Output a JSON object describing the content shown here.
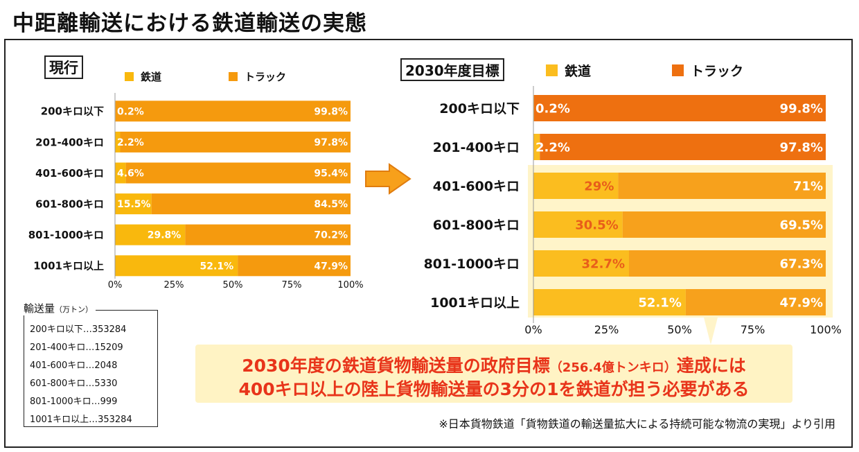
{
  "title": "中距離輸送における鉄道輸送の実態",
  "legend": {
    "rail": "鉄道",
    "truck": "トラック"
  },
  "colors": {
    "rail_current": "#f9b80d",
    "truck_current": "#f59a0e",
    "rail_target": "#fbbd1f",
    "truck_target_dark": "#ee7010",
    "truck_target_light": "#f7a11c",
    "highlight_bg": "#fff4c9",
    "label_dark": "#e85d1a",
    "callout_text": "#e8341a"
  },
  "chart_data": [
    {
      "type": "bar",
      "orientation": "horizontal",
      "stacked": true,
      "tag": "現行",
      "categories": [
        "200キロ以下",
        "201-400キロ",
        "401-600キロ",
        "601-800キロ",
        "801-1000キロ",
        "1001キロ以上"
      ],
      "series": [
        {
          "name": "鉄道",
          "values": [
            0.2,
            2.2,
            4.6,
            15.5,
            29.8,
            52.1
          ],
          "labels": [
            "0.2%",
            "2.2%",
            "4.6%",
            "15.5%",
            "29.8%",
            "52.1%"
          ]
        },
        {
          "name": "トラック",
          "values": [
            99.8,
            97.8,
            95.4,
            84.5,
            70.2,
            47.9
          ],
          "labels": [
            "99.8%",
            "97.8%",
            "95.4%",
            "84.5%",
            "70.2%",
            "47.9%"
          ]
        }
      ],
      "xlim": [
        0,
        100
      ],
      "xticks": [
        "0%",
        "25%",
        "50%",
        "75%",
        "100%"
      ],
      "legend_position": "top"
    },
    {
      "type": "bar",
      "orientation": "horizontal",
      "stacked": true,
      "tag": "2030年度目標",
      "categories": [
        "200キロ以下",
        "201-400キロ",
        "401-600キロ",
        "601-800キロ",
        "801-1000キロ",
        "1001キロ以上"
      ],
      "series": [
        {
          "name": "鉄道",
          "values": [
            0.2,
            2.2,
            29,
            30.5,
            32.7,
            52.1
          ],
          "labels": [
            "0.2%",
            "2.2%",
            "29%",
            "30.5%",
            "32.7%",
            "52.1%"
          ]
        },
        {
          "name": "トラック",
          "values": [
            99.8,
            97.8,
            71,
            69.5,
            67.3,
            47.9
          ],
          "labels": [
            "99.8%",
            "97.8%",
            "71%",
            "69.5%",
            "67.3%",
            "47.9%"
          ]
        }
      ],
      "xlim": [
        0,
        100
      ],
      "xticks": [
        "0%",
        "25%",
        "50%",
        "75%",
        "100%"
      ],
      "legend_position": "top",
      "highlighted_categories": [
        "401-600キロ",
        "601-800キロ",
        "801-1000キロ",
        "1001キロ以上"
      ]
    }
  ],
  "volume": {
    "title": "輸送量",
    "unit": "（万トン）",
    "rows": [
      "200キロ以下…353284",
      "201-400キロ…15209",
      "401-600キロ…2048",
      "601-800キロ…5330",
      "801-1000キロ…999",
      "1001キロ以上…353284"
    ]
  },
  "callout": {
    "line1_a": "2030年度の鉄道貨物輸送量の政府目標",
    "line1_b": "（256.4億トンキロ）",
    "line1_c": "達成には",
    "line2": "400キロ以上の陸上貨物輸送量の3分の1を鉄道が担う必要がある"
  },
  "source": "※日本貨物鉄道「貨物鉄道の輸送量拡大による持続可能な物流の実現」より引用"
}
